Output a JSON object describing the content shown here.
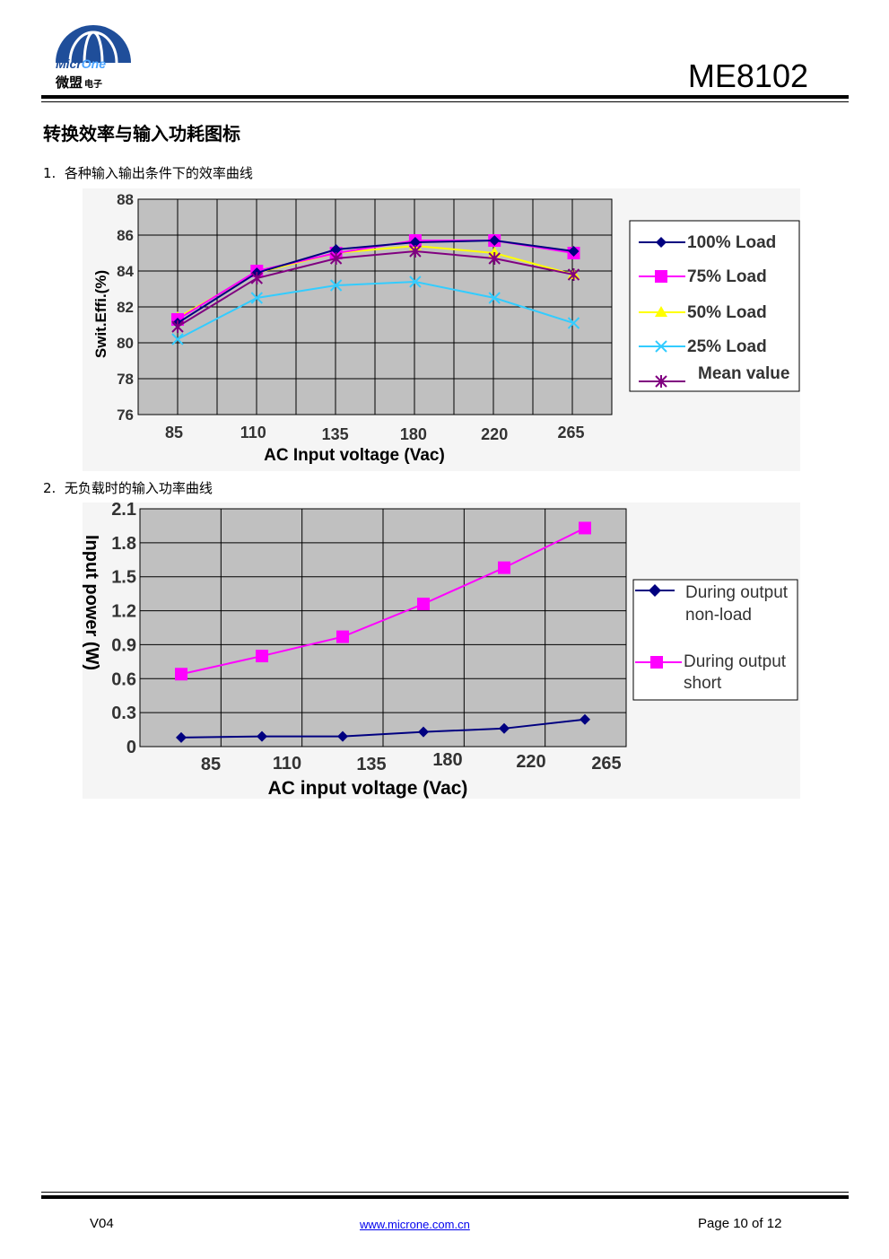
{
  "header": {
    "logo_en_part1": "Micr",
    "logo_en_part2": "One",
    "logo_cn_main": "微盟",
    "logo_cn_sub": "电子",
    "model": "ME8102"
  },
  "section_title": "转换效率与输入功耗图标",
  "items": [
    {
      "label": "1.  各种输入输出条件下的效率曲线"
    },
    {
      "label": "2.  无负载时的输入功率曲线"
    }
  ],
  "colors": {
    "s100": "#000080",
    "s75": "#ff00ff",
    "s50": "#ffff00",
    "s25": "#33ccff",
    "mean": "#800080",
    "plot_bg": "#c0c0c0",
    "grid": "#000000"
  },
  "chart_data": [
    {
      "type": "line",
      "title": "",
      "xlabel": "AC Input voltage (Vac)",
      "ylabel": "Swit.Effi.(%)",
      "categories": [
        "85",
        "110",
        "135",
        "180",
        "220",
        "265"
      ],
      "ylim": [
        76,
        88
      ],
      "yticks": [
        "88",
        "86",
        "84",
        "82",
        "80",
        "78",
        "76"
      ],
      "grid": true,
      "legend_position": "right",
      "series": [
        {
          "name": "100%  Load",
          "marker": "diamond",
          "color": "#000080",
          "values": [
            81.1,
            83.9,
            85.2,
            85.6,
            85.7,
            85.1
          ]
        },
        {
          "name": "75%   Load",
          "marker": "square",
          "color": "#ff00ff",
          "values": [
            81.3,
            84.0,
            85.0,
            85.7,
            85.7,
            85.0
          ]
        },
        {
          "name": "50%   Load",
          "marker": "triangle",
          "color": "#ffff00",
          "values": [
            81.4,
            83.9,
            85.0,
            85.4,
            85.0,
            83.8
          ]
        },
        {
          "name": "25%   Load",
          "marker": "x",
          "color": "#33ccff",
          "values": [
            80.2,
            82.5,
            83.2,
            83.4,
            82.5,
            81.1
          ]
        },
        {
          "name": "Mean value",
          "marker": "star",
          "color": "#800080",
          "values": [
            80.9,
            83.6,
            84.7,
            85.1,
            84.7,
            83.8
          ]
        }
      ]
    },
    {
      "type": "line",
      "title": "",
      "xlabel": "AC input voltage (Vac)",
      "ylabel": "Input power (W)",
      "categories": [
        "85",
        "110",
        "135",
        "180",
        "220",
        "265"
      ],
      "ylim": [
        0,
        2.1
      ],
      "yticks": [
        "2.1",
        "1.8",
        "1.5",
        "1.2",
        "0.9",
        "0.6",
        "0.3",
        "0"
      ],
      "grid": true,
      "legend_position": "right",
      "series": [
        {
          "name": "During output non-load",
          "marker": "diamond",
          "color": "#000080",
          "values": [
            0.08,
            0.09,
            0.09,
            0.13,
            0.16,
            0.24
          ]
        },
        {
          "name": "During output short",
          "marker": "square",
          "color": "#ff00ff",
          "values": [
            0.64,
            0.8,
            0.97,
            1.26,
            1.58,
            1.93
          ]
        }
      ]
    }
  ],
  "chart2_legend": {
    "line1a": "During output",
    "line1b": "non-load",
    "line2a": "During output",
    "line2b": "short"
  },
  "footer": {
    "version": "V04",
    "url": "www.microne.com.cn",
    "page": "Page 10 of 12"
  }
}
